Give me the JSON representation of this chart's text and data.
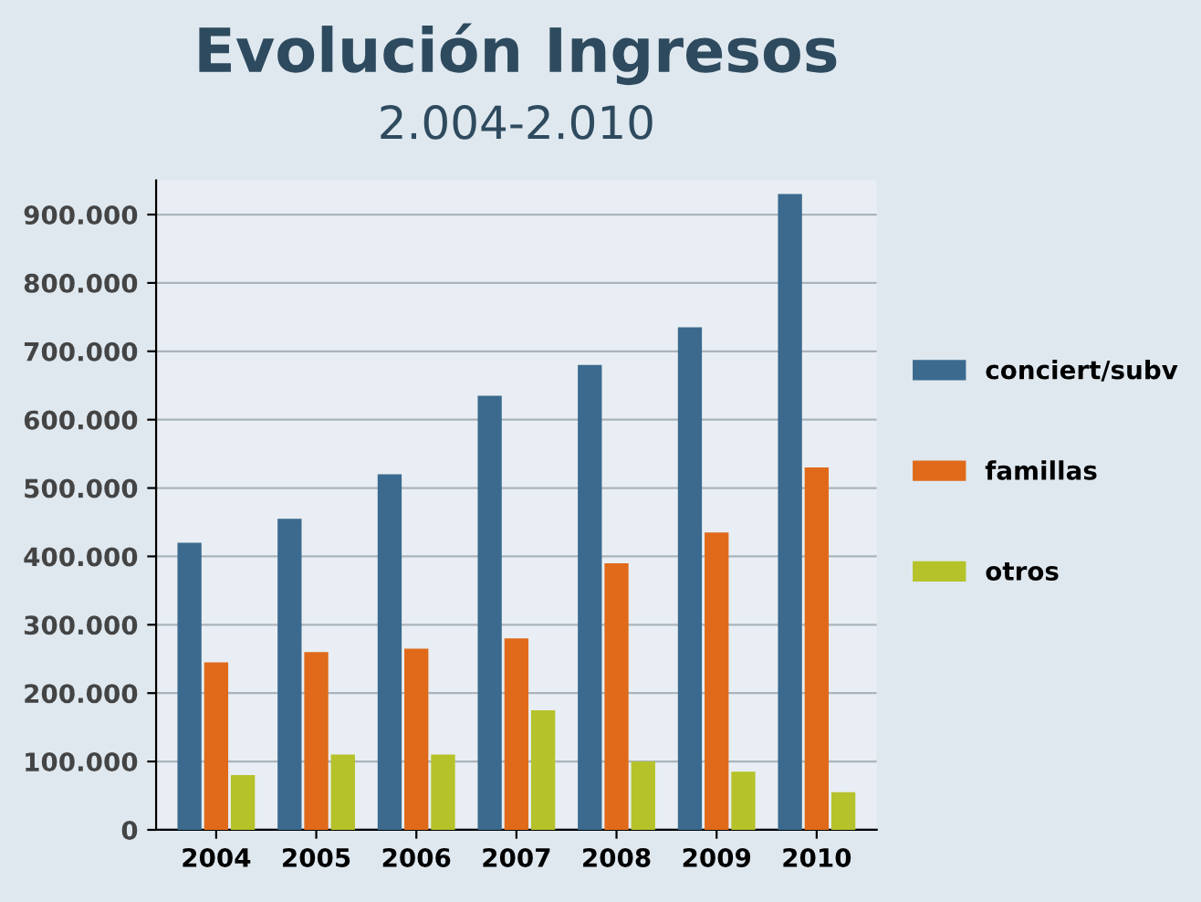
{
  "chart_data": {
    "type": "bar",
    "title": "Evolución Ingresos",
    "subtitle": "2.004-2.010",
    "categories": [
      "2004",
      "2005",
      "2006",
      "2007",
      "2008",
      "2009",
      "2010"
    ],
    "series": [
      {
        "name": "conciert/subv",
        "color": "#3b6a8e",
        "values": [
          420000,
          455000,
          520000,
          635000,
          680000,
          735000,
          930000
        ]
      },
      {
        "name": "famillas",
        "color": "#e06a1a",
        "values": [
          245000,
          260000,
          265000,
          280000,
          390000,
          435000,
          530000
        ]
      },
      {
        "name": "otros",
        "color": "#b5c22a",
        "values": [
          80000,
          110000,
          110000,
          175000,
          100000,
          85000,
          55000
        ]
      }
    ],
    "ylim": [
      0,
      950000
    ],
    "yticks": [
      {
        "value": 0,
        "label": "0"
      },
      {
        "value": 100000,
        "label": "100.000"
      },
      {
        "value": 200000,
        "label": "200.000"
      },
      {
        "value": 300000,
        "label": "300.000"
      },
      {
        "value": 400000,
        "label": "400.000"
      },
      {
        "value": 500000,
        "label": "500.000"
      },
      {
        "value": 600000,
        "label": "600.000"
      },
      {
        "value": 700000,
        "label": "700.000"
      },
      {
        "value": 800000,
        "label": "800.000"
      },
      {
        "value": 900000,
        "label": "900.000"
      }
    ],
    "grid": "y",
    "legend": "right"
  }
}
